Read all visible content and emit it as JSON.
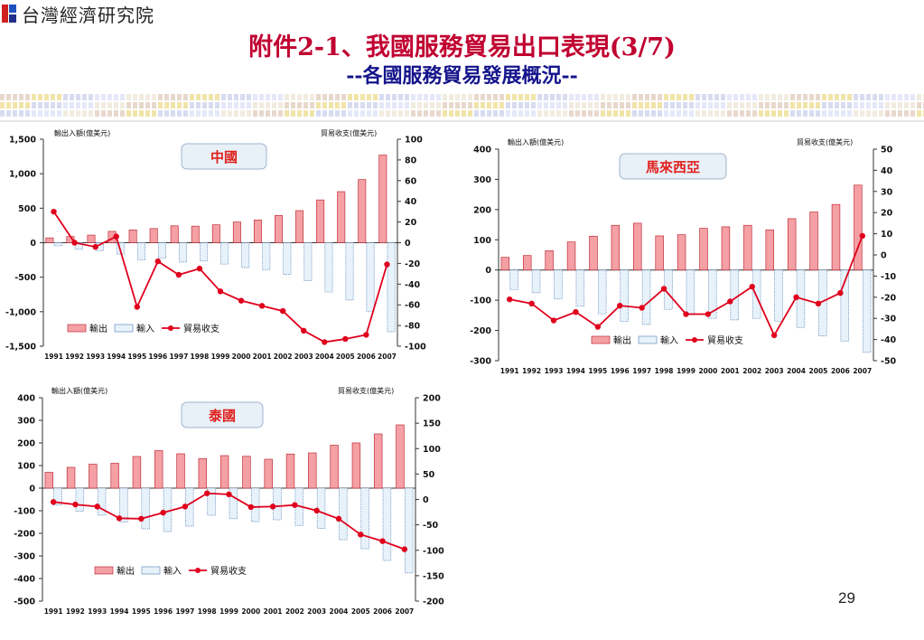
{
  "header": {
    "logo_text": "台灣經濟研究院",
    "title": "附件2-1、我國服務貿易出口表現(3/7)",
    "subtitle": "--各國服務貿易發展概況--"
  },
  "page_number": "29",
  "colors": {
    "export_fill": "#f4a0a4",
    "export_stroke": "#c0303a",
    "import_fill": "#e8f2fa",
    "import_stroke": "#6a8fc0",
    "balance_line": "#e0001c",
    "country_label": "#e0201c",
    "title": "#c00030",
    "subtitle": "#14148c"
  },
  "legend": {
    "export": "輸出",
    "import": "輸入",
    "balance": "貿易收支"
  },
  "axis_titles": {
    "left": "輸出入額(億美元)",
    "right": "貿易收支(億美元)"
  },
  "chart_data": [
    {
      "type": "bar",
      "country": "中國",
      "categories": [
        "1991",
        "1992",
        "1993",
        "1994",
        "1995",
        "1996",
        "1997",
        "1998",
        "1999",
        "2000",
        "2001",
        "2002",
        "2003",
        "2004",
        "2005",
        "2006",
        "2007"
      ],
      "left_ylim": [
        -1500,
        1500
      ],
      "left_ticks": [
        1500,
        1000,
        500,
        0,
        -500,
        -1000,
        -1500
      ],
      "left_tick_labels": [
        "1,500",
        "1,000",
        "500",
        "0",
        "-500",
        "-1,000",
        "-1,500"
      ],
      "right_ylim": [
        -100,
        100
      ],
      "right_ticks": [
        100,
        80,
        60,
        40,
        20,
        0,
        -20,
        -40,
        -60,
        -80,
        -100
      ],
      "series": [
        {
          "name": "輸出",
          "values": [
            70,
            90,
            110,
            165,
            185,
            205,
            245,
            240,
            260,
            300,
            330,
            395,
            465,
            620,
            740,
            915,
            1270
          ]
        },
        {
          "name": "輸入",
          "values": [
            -45,
            -95,
            -115,
            -165,
            -250,
            -225,
            -280,
            -265,
            -310,
            -360,
            -390,
            -460,
            -550,
            -715,
            -830,
            -1000,
            -1290
          ]
        },
        {
          "name": "貿易收支",
          "values": [
            30,
            0,
            -4,
            6,
            -62,
            -18,
            -31,
            -25,
            -47,
            -56,
            -61,
            -66,
            -85,
            -96,
            -93,
            -89,
            -21
          ]
        }
      ]
    },
    {
      "type": "bar",
      "country": "馬來西亞",
      "categories": [
        "1991",
        "1992",
        "1993",
        "1994",
        "1995",
        "1996",
        "1997",
        "1998",
        "1999",
        "2000",
        "2001",
        "2002",
        "2003",
        "2004",
        "2005",
        "2006",
        "2007"
      ],
      "left_ylim": [
        -300,
        400
      ],
      "left_ticks": [
        400,
        300,
        200,
        100,
        0,
        -100,
        -200,
        -300
      ],
      "left_tick_labels": [
        "400",
        "300",
        "200",
        "100",
        "0",
        "-100",
        "-200",
        "-300"
      ],
      "right_ylim": [
        -50,
        50
      ],
      "right_ticks": [
        50,
        40,
        30,
        20,
        10,
        0,
        -10,
        -20,
        -30,
        -40,
        -50
      ],
      "series": [
        {
          "name": "輸出",
          "values": [
            42,
            48,
            64,
            93,
            112,
            148,
            155,
            113,
            117,
            138,
            143,
            148,
            133,
            170,
            192,
            217,
            281
          ]
        },
        {
          "name": "輸入",
          "values": [
            -65,
            -75,
            -95,
            -120,
            -145,
            -170,
            -180,
            -130,
            -148,
            -160,
            -165,
            -160,
            -170,
            -190,
            -218,
            -235,
            -272
          ]
        },
        {
          "name": "貿易收支",
          "values": [
            -21,
            -23,
            -31,
            -27,
            -34,
            -24,
            -25,
            -16,
            -28,
            -28,
            -22,
            -15,
            -38,
            -20,
            -23,
            -18,
            9
          ]
        }
      ]
    },
    {
      "type": "bar",
      "country": "泰國",
      "categories": [
        "1991",
        "1992",
        "1993",
        "1994",
        "1995",
        "1996",
        "1997",
        "1998",
        "1999",
        "2000",
        "2001",
        "2002",
        "2003",
        "2004",
        "2005",
        "2006",
        "2007"
      ],
      "left_ylim": [
        -500,
        400
      ],
      "left_ticks": [
        400,
        300,
        200,
        100,
        0,
        -100,
        -200,
        -300,
        -400,
        -500
      ],
      "left_tick_labels": [
        "400",
        "300",
        "200",
        "100",
        "0",
        "-100",
        "-200",
        "-300",
        "-400",
        "-500"
      ],
      "right_ylim": [
        -200,
        200
      ],
      "right_ticks": [
        200,
        150,
        100,
        50,
        0,
        -50,
        -100,
        -150,
        -200
      ],
      "series": [
        {
          "name": "輸出",
          "values": [
            70,
            92,
            106,
            110,
            140,
            166,
            152,
            131,
            144,
            141,
            128,
            151,
            156,
            190,
            200,
            240,
            280
          ]
        },
        {
          "name": "輸入",
          "values": [
            -75,
            -102,
            -120,
            -150,
            -180,
            -192,
            -168,
            -120,
            -135,
            -148,
            -140,
            -165,
            -178,
            -228,
            -268,
            -320,
            -375
          ]
        },
        {
          "name": "貿易收支",
          "values": [
            -5,
            -10,
            -14,
            -37,
            -38,
            -26,
            -14,
            12,
            10,
            -15,
            -14,
            -11,
            -22,
            -38,
            -69,
            -82,
            -98
          ]
        }
      ]
    }
  ]
}
